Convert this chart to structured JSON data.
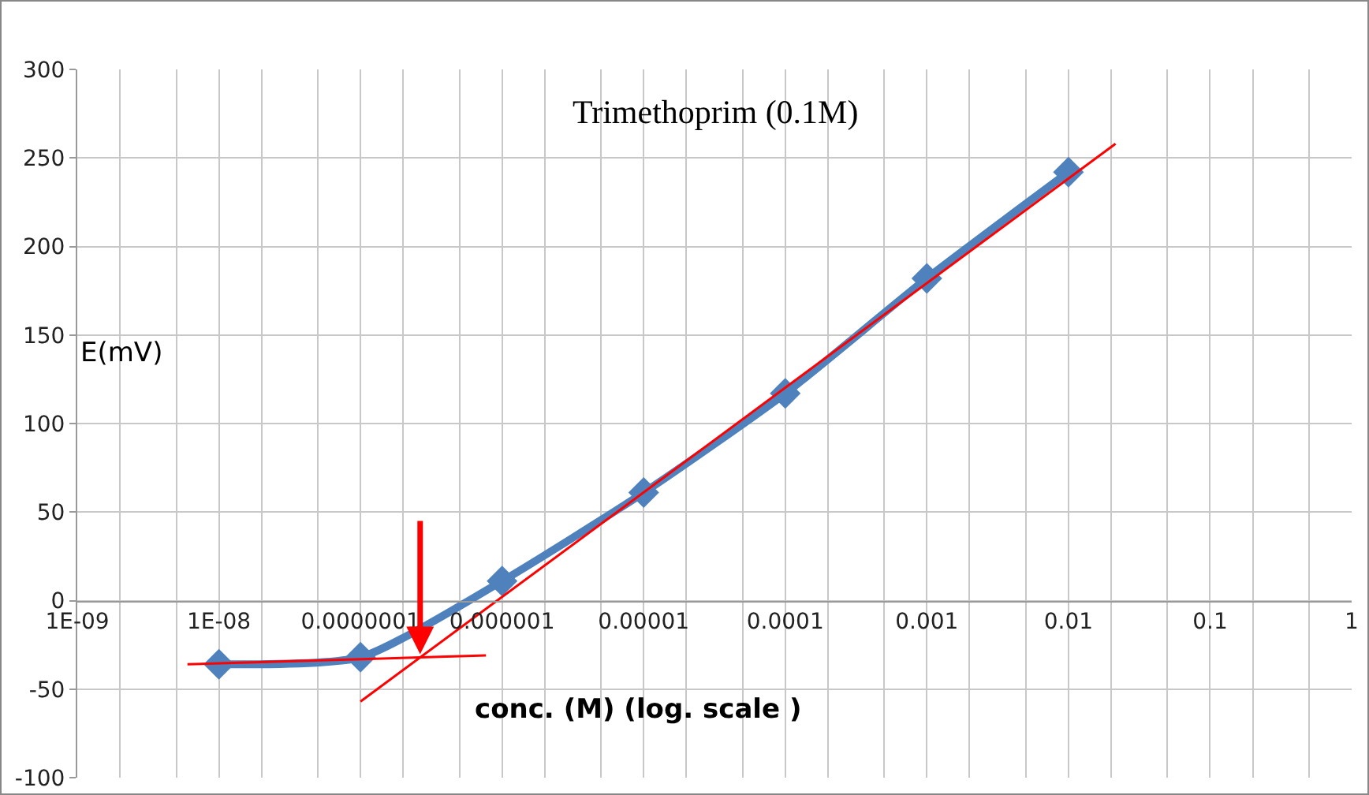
{
  "chart_data": {
    "type": "line",
    "xlabel": "conc. (M) (log. scale )",
    "ylabel": "E(mV)",
    "annotations": [
      "Trimethoprim (0.1M)"
    ],
    "log": "x",
    "grid": true,
    "line_style": "solid",
    "xlim": [
      1e-09,
      1
    ],
    "xticks": [
      {
        "value": 1e-09,
        "label": "1E-09"
      },
      {
        "value": 1e-08,
        "label": "1E-08"
      },
      {
        "value": 1e-07,
        "label": "0.0000001"
      },
      {
        "value": 1e-06,
        "label": "0.000001"
      },
      {
        "value": 1e-05,
        "label": "0.00001"
      },
      {
        "value": 0.0001,
        "label": "0.0001"
      },
      {
        "value": 0.001,
        "label": "0.001"
      },
      {
        "value": 0.01,
        "label": "0.01"
      },
      {
        "value": 0.1,
        "label": "0.1"
      },
      {
        "value": 1,
        "label": "1"
      }
    ],
    "ylim": [
      -100,
      300
    ],
    "yticks": [
      -100,
      -50,
      0,
      50,
      100,
      150,
      200,
      250,
      300
    ],
    "series": [
      {
        "color": "#4f81bd",
        "marker": "diamond",
        "x": [
          1e-08,
          1e-07,
          1e-06,
          1e-05,
          0.0001,
          0.001,
          0.01
        ],
        "values": [
          -36,
          -32,
          11,
          61,
          117,
          182,
          242
        ]
      },
      {
        "type": "line",
        "color": "#ff0000",
        "marker": "none",
        "x": [
          1e-07,
          0.0215
        ],
        "values": [
          -57,
          258
        ]
      },
      {
        "type": "line",
        "color": "#ff0000",
        "marker": "none",
        "x": [
          6e-09,
          7.7e-07
        ],
        "values": [
          -36,
          -31
        ]
      }
    ]
  }
}
